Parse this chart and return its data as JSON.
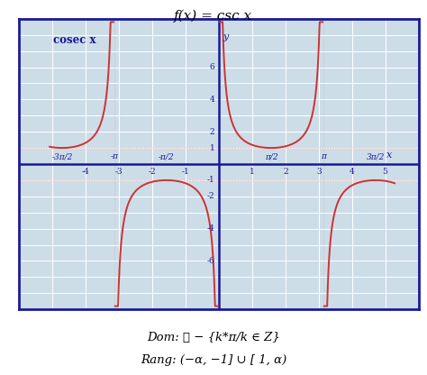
{
  "title": "f(x) = csc x",
  "label": "cosec x",
  "curve_color": "#cc3333",
  "bg_color": "#cddde8",
  "border_color": "#1a1a99",
  "grid_color": "#ffffff",
  "axis_color": "#1a1a99",
  "tick_color": "#1a1a99",
  "xlim": [
    -5.1,
    5.3
  ],
  "ylim": [
    -8.3,
    8.3
  ],
  "dom_text1": "Dom: ℝ − {k*π/k ∈ Z}",
  "dom_text2": "Rang: (−α, −1] ∪ [ 1, α)"
}
